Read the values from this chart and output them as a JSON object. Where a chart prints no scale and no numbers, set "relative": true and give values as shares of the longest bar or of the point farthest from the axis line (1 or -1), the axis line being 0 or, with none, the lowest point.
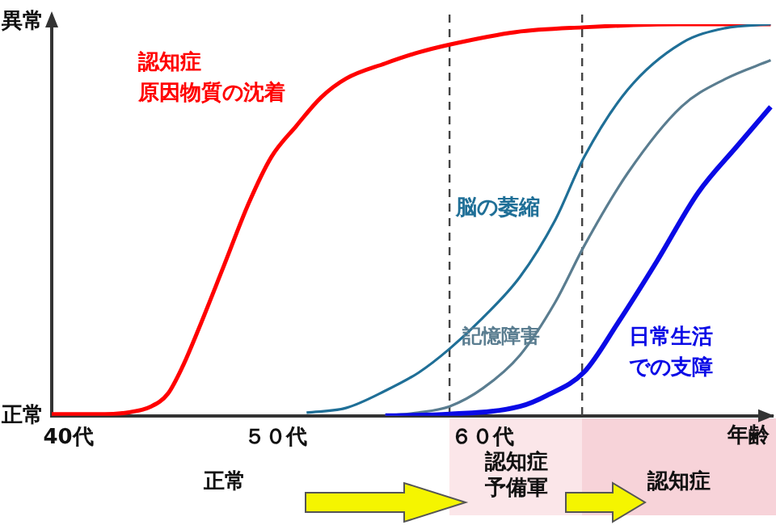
{
  "chart_data": {
    "type": "line",
    "xlabel": "年齢",
    "xlim": [
      39.2,
      74
    ],
    "xticks": [
      {
        "value": 40,
        "label": "40代"
      },
      {
        "value": 50,
        "label": "５０代"
      },
      {
        "value": 60,
        "label": "６０代"
      }
    ],
    "relative": true,
    "grid": false,
    "legend": false,
    "marker": "none",
    "line_style": "solid",
    "series": [
      {
        "name": "認知症原因物質の沈着",
        "color": "#ff0000",
        "x": [
          39.2,
          41.3,
          42.8,
          44.0,
          44.8,
          45.5,
          46.3,
          47.5,
          48.7,
          49.8,
          51.0,
          52.2,
          53.4,
          55.3,
          56.9,
          58.4,
          61.6,
          64.8,
          69.4,
          73.9
        ],
        "values": [
          0.004,
          0.004,
          0.008,
          0.024,
          0.056,
          0.124,
          0.223,
          0.382,
          0.542,
          0.661,
          0.74,
          0.813,
          0.861,
          0.9,
          0.928,
          0.948,
          0.98,
          0.992,
          1,
          1
        ]
      },
      {
        "name": "脳の萎縮",
        "color": "#1f6f97",
        "x": [
          51.5,
          53.4,
          55.3,
          56.9,
          58.4,
          60,
          61.8,
          63.5,
          64.9,
          67,
          69.6,
          71.7,
          73.9
        ],
        "values": [
          0.008,
          0.02,
          0.064,
          0.11,
          0.171,
          0.25,
          0.355,
          0.5,
          0.661,
          0.833,
          0.952,
          0.99,
          1
        ]
      },
      {
        "name": "記憶障害",
        "color": "#5a7d90",
        "x": [
          55.3,
          56.9,
          58.4,
          60,
          61.8,
          63.5,
          64.9,
          67,
          69.6,
          71.7,
          73.9
        ],
        "values": [
          0,
          0.008,
          0.024,
          0.07,
          0.155,
          0.29,
          0.434,
          0.62,
          0.79,
          0.86,
          0.908
        ]
      },
      {
        "name": "日常生活での支障",
        "color": "#0a0ae6",
        "x": [
          55.3,
          58.4,
          61.8,
          63.1,
          64.9,
          66.5,
          68.4,
          70.4,
          72.3,
          73.9
        ],
        "values": [
          0,
          0.004,
          0.024,
          0.052,
          0.112,
          0.235,
          0.394,
          0.57,
          0.69,
          0.789
        ]
      }
    ],
    "ref_lines": [
      {
        "axis": "x",
        "value": 58.4,
        "color": "#444444",
        "line_style": "dashed"
      },
      {
        "axis": "x",
        "value": 64.8,
        "color": "#444444",
        "line_style": "dashed"
      }
    ],
    "annotations": [
      "異常",
      "正常",
      "正常",
      "認知症予備軍",
      "認知症"
    ]
  }
}
